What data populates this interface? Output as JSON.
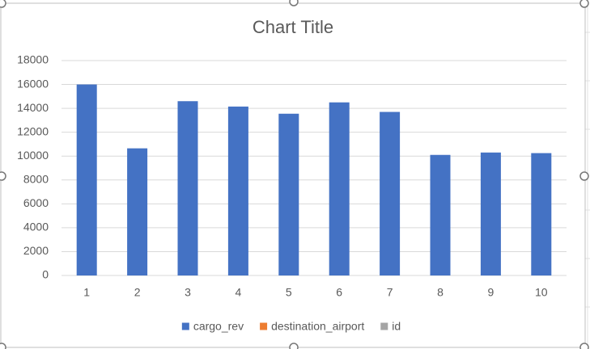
{
  "chart_data": {
    "type": "bar",
    "title": "Chart Title",
    "categories": [
      "1",
      "2",
      "3",
      "4",
      "5",
      "6",
      "7",
      "8",
      "9",
      "10"
    ],
    "series": [
      {
        "name": "cargo_rev",
        "color": "#4472c4",
        "values": [
          16000,
          10650,
          14600,
          14150,
          13550,
          14500,
          13700,
          10100,
          10300,
          10250
        ]
      },
      {
        "name": "destination_airport",
        "color": "#ed7d31",
        "values": [
          null,
          null,
          null,
          null,
          null,
          null,
          null,
          null,
          null,
          null
        ]
      },
      {
        "name": "id",
        "color": "#a5a5a5",
        "values": [
          null,
          null,
          null,
          null,
          null,
          null,
          null,
          null,
          null,
          null
        ]
      }
    ],
    "ylim": [
      0,
      18000
    ],
    "yticks": [
      0,
      2000,
      4000,
      6000,
      8000,
      10000,
      12000,
      14000,
      16000,
      18000
    ],
    "grid": true,
    "legend": "bottom"
  }
}
